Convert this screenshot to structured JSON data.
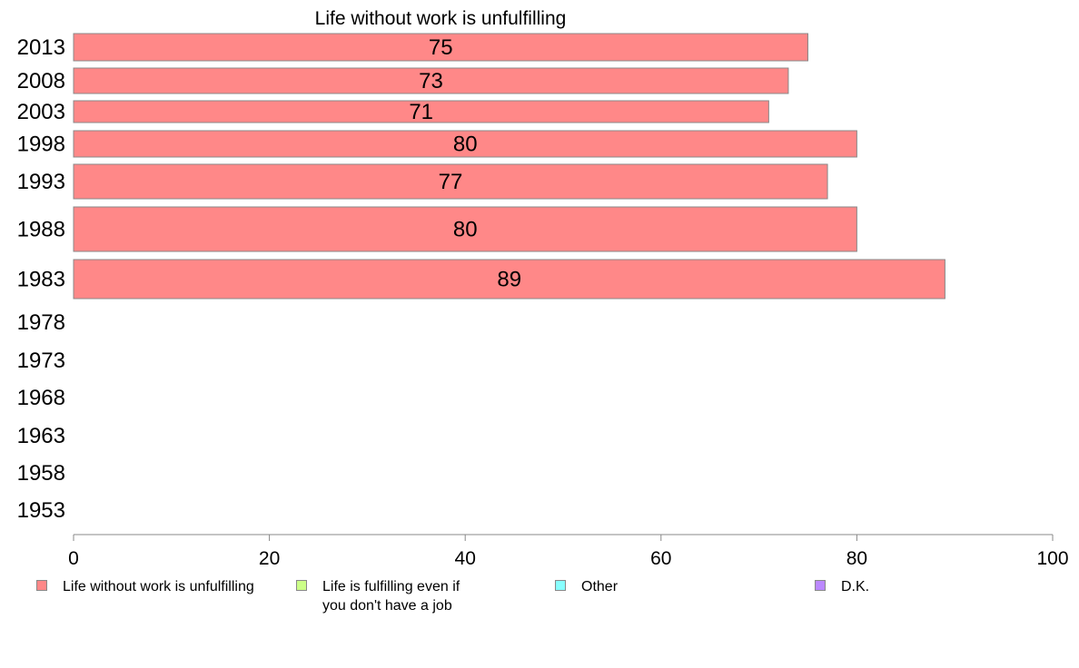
{
  "chart_data": {
    "type": "bar",
    "orientation": "horizontal",
    "title": "Life without work is unfulfilling",
    "categories": [
      "2013",
      "2008",
      "2003",
      "1998",
      "1993",
      "1988",
      "1983",
      "1978",
      "1973",
      "1968",
      "1963",
      "1958",
      "1953"
    ],
    "series": [
      {
        "name": "Life without work is unfulfilling",
        "color": "#ff8888",
        "values": [
          75,
          73,
          71,
          80,
          77,
          80,
          89,
          null,
          null,
          null,
          null,
          null,
          null
        ],
        "value_labels": [
          "75",
          "73",
          "71",
          "80",
          "77",
          "80",
          "89",
          null,
          null,
          null,
          null,
          null,
          null
        ]
      }
    ],
    "xlim": [
      0,
      100
    ],
    "xticks": [
      "0",
      "20",
      "40",
      "60",
      "80",
      "100"
    ],
    "grid": false,
    "legend": {
      "placement": "bottom",
      "items": [
        {
          "label": "Life without work is unfulfilling",
          "color": "#ff8888"
        },
        {
          "label": "Life is fulfilling even if\nyou don't have a job",
          "color": "#ccff88"
        },
        {
          "label": "Other",
          "color": "#88ffff"
        },
        {
          "label": "D.K.",
          "color": "#bb88ff"
        }
      ]
    }
  }
}
